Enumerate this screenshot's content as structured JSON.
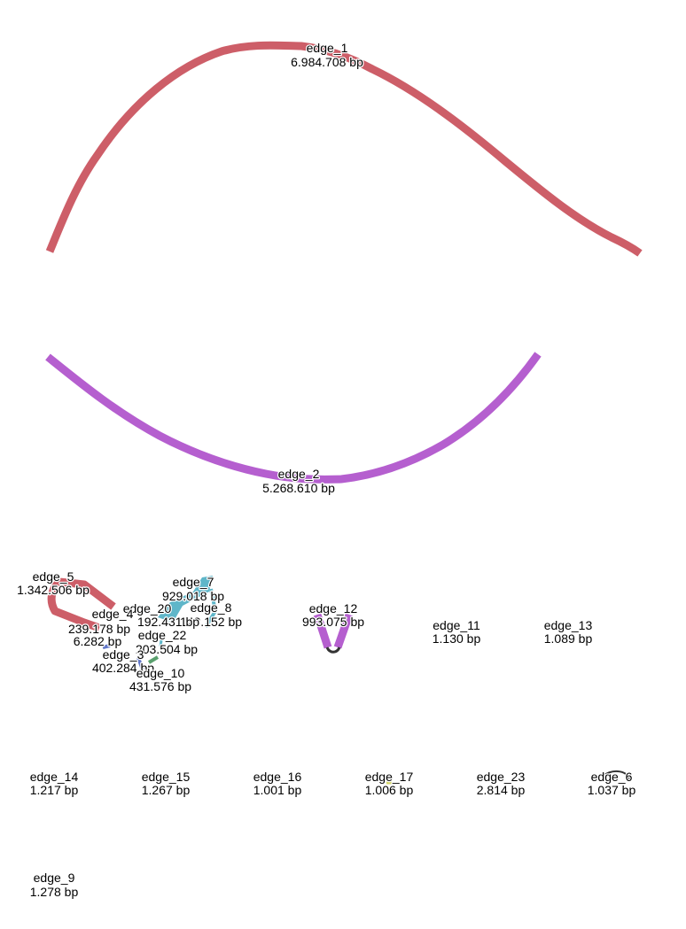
{
  "colors": {
    "red": "#cd5e68",
    "purple": "#b55fcf",
    "teal": "#5fb6c9",
    "blue": "#6277c9",
    "green": "#5aa06e",
    "yellow": "#d4d66a",
    "dark": "#333333"
  },
  "edges": [
    {
      "name": "edge_1",
      "length": "6.984.708 bp"
    },
    {
      "name": "edge_2",
      "length": "5.268.610 bp"
    },
    {
      "name": "edge_5",
      "length": "1.342.506 bp"
    },
    {
      "name": "edge_7",
      "length": "929.018 bp"
    },
    {
      "name": "edge_8",
      "length": "143.152 bp"
    },
    {
      "name": "edge_4",
      "length": "239.178 bp"
    },
    {
      "name": "edge_20",
      "length": "192.431 bp"
    },
    {
      "name": "edge_18",
      "length": "6.282 bp"
    },
    {
      "name": "edge_22",
      "length": "203.504 bp"
    },
    {
      "name": "edge_3",
      "length": "402.284 bp"
    },
    {
      "name": "edge_10",
      "length": "431.576 bp"
    },
    {
      "name": "edge_12",
      "length": "993.075 bp"
    },
    {
      "name": "edge_11",
      "length": "1.130 bp"
    },
    {
      "name": "edge_13",
      "length": "1.089 bp"
    },
    {
      "name": "edge_14",
      "length": "1.217 bp"
    },
    {
      "name": "edge_15",
      "length": "1.267 bp"
    },
    {
      "name": "edge_16",
      "length": "1.001 bp"
    },
    {
      "name": "edge_17",
      "length": "1.006 bp"
    },
    {
      "name": "edge_23",
      "length": "2.814 bp"
    },
    {
      "name": "edge_6",
      "length": "1.037 bp"
    },
    {
      "name": "edge_9",
      "length": "1.278 bp"
    }
  ]
}
